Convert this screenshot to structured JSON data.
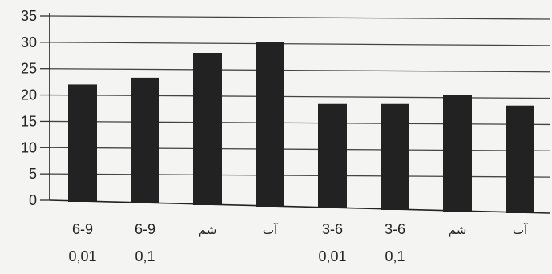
{
  "chart_data": {
    "type": "bar",
    "categories": [
      [
        "6-9",
        "0,01"
      ],
      [
        "6-9",
        "0,1"
      ],
      [
        "شم"
      ],
      [
        "آب"
      ],
      [
        "3-6",
        "0,01"
      ],
      [
        "3-6",
        "0,1"
      ],
      [
        "شم"
      ],
      [
        "آب"
      ]
    ],
    "values": [
      22,
      23.3,
      28,
      30,
      18.3,
      18.3,
      20,
      18
    ],
    "yticks": [
      "0",
      "5",
      "10",
      "15",
      "20",
      "25",
      "30",
      "35"
    ],
    "ylim": [
      0,
      35
    ],
    "grid": true,
    "bar_color": "#222222",
    "grid_color": "#444444",
    "background_color": "#f4f4f2"
  }
}
